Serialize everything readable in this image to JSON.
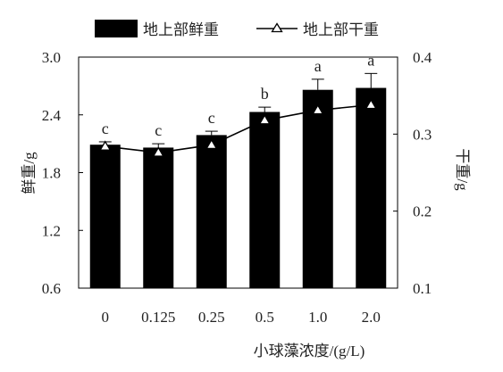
{
  "chart_data": {
    "type": "bar",
    "title": "",
    "categories": [
      "0",
      "0.125",
      "0.25",
      "0.5",
      "1.0",
      "2.0"
    ],
    "xlabel": "小球藻浓度/(g/L)",
    "ylabel_left": "鲜重/g",
    "ylabel_right": "干重/g",
    "ylim_left": [
      0.6,
      3.0
    ],
    "yticks_left": [
      "0.6",
      "1.2",
      "1.8",
      "2.4",
      "3.0"
    ],
    "ylim_right": [
      0.1,
      0.4
    ],
    "yticks_right": [
      "0.1",
      "0.2",
      "0.3",
      "0.4"
    ],
    "grid": false,
    "legend_position": "top",
    "series": [
      {
        "name": "地上部鲜重",
        "type": "bar",
        "axis": "left",
        "color": "#000000",
        "values": [
          2.09,
          2.06,
          2.19,
          2.43,
          2.66,
          2.68
        ],
        "errors": [
          0.03,
          0.04,
          0.04,
          0.05,
          0.11,
          0.15
        ],
        "letters": [
          "c",
          "c",
          "c",
          "b",
          "a",
          "a"
        ]
      },
      {
        "name": "地上部干重",
        "type": "line",
        "axis": "right",
        "color": "#000000",
        "marker": "triangle-open",
        "values": [
          0.284,
          0.276,
          0.286,
          0.318,
          0.331,
          0.338
        ]
      }
    ]
  }
}
